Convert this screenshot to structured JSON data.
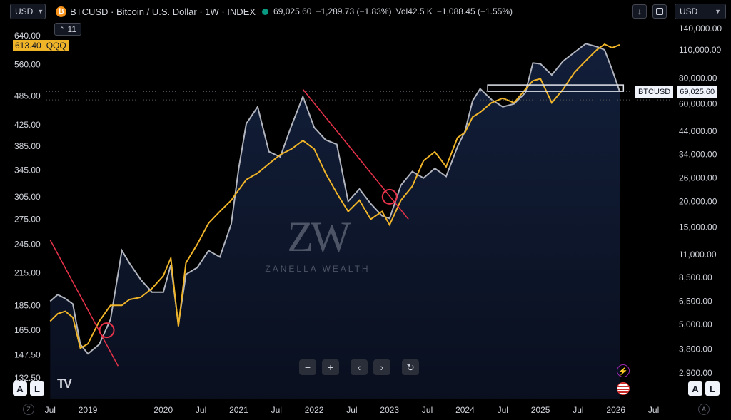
{
  "header": {
    "currency_left": "USD",
    "symbol_title": "BTCUSD · Bitcoin / U.S. Dollar · 1W · INDEX",
    "price": "69,025.60",
    "change": "−1,289.73 (−1.83%)",
    "vol_label": "Vol",
    "vol_value": "42.5 K",
    "vol_change": "−1,088.45 (−1.55%)",
    "currency_right": "USD",
    "compare_count": "11",
    "minus_icon": "minus-icon",
    "plus_icon": "plus-icon"
  },
  "colors": {
    "btc_line": "#b2b5be",
    "qqq_line": "#f0b429",
    "trend_line": "#e8334a",
    "area_fill": "#0e1a33",
    "badge_qqq": "#f0b429"
  },
  "chart_data": {
    "type": "line",
    "title": "BTCUSD · Bitcoin / U.S. Dollar · 1W · INDEX",
    "xlabel": "",
    "ylabel": "",
    "x_ticks": [
      "Jul",
      "2019",
      "2020",
      "Jul",
      "2021",
      "Jul",
      "2022",
      "Jul",
      "2023",
      "Jul",
      "2024",
      "Jul",
      "2025",
      "Jul",
      "2026",
      "Jul"
    ],
    "left_axis": {
      "label": "QQQ",
      "scale": "log",
      "ticks": [
        "640.00",
        "560.00",
        "485.00",
        "425.00",
        "385.00",
        "345.00",
        "305.00",
        "275.00",
        "245.00",
        "215.00",
        "185.00",
        "165.00",
        "147.50",
        "132.50"
      ],
      "current_value": "613.40",
      "current_label": "QQQ"
    },
    "right_axis": {
      "label": "BTCUSD",
      "scale": "log",
      "ticks": [
        "140,000.00",
        "110,000.00",
        "80,000.00",
        "60,000.00",
        "44,000.00",
        "34,000.00",
        "26,000.00",
        "20,000.00",
        "15,000.00",
        "11,000.00",
        "8,500.00",
        "6,500.00",
        "5,000.00",
        "3,800.00",
        "2,900.00"
      ],
      "current_value": "69,025.60",
      "current_label": "BTCUSD"
    },
    "series": [
      {
        "name": "BTCUSD",
        "axis": "right",
        "x": [
          2018.5,
          2018.6,
          2018.7,
          2018.8,
          2018.9,
          2019.0,
          2019.15,
          2019.3,
          2019.45,
          2019.55,
          2019.7,
          2019.85,
          2020.0,
          2020.1,
          2020.2,
          2020.3,
          2020.45,
          2020.6,
          2020.75,
          2020.9,
          2021.0,
          2021.1,
          2021.25,
          2021.4,
          2021.55,
          2021.7,
          2021.85,
          2022.0,
          2022.15,
          2022.3,
          2022.45,
          2022.6,
          2022.75,
          2022.9,
          2023.0,
          2023.15,
          2023.3,
          2023.45,
          2023.6,
          2023.75,
          2023.9,
          2024.0,
          2024.1,
          2024.2,
          2024.35,
          2024.5,
          2024.65,
          2024.8,
          2024.9,
          2025.0,
          2025.15,
          2025.3,
          2025.45,
          2025.6,
          2025.75,
          2025.85,
          2025.95,
          2026.05
        ],
        "values": [
          6500,
          7000,
          6700,
          6300,
          4000,
          3600,
          4000,
          5300,
          11500,
          10000,
          8300,
          7200,
          7200,
          9800,
          5000,
          8800,
          9500,
          11500,
          10700,
          15500,
          29000,
          48000,
          58000,
          35000,
          33000,
          47000,
          65000,
          46000,
          40000,
          38000,
          20000,
          23000,
          19500,
          17000,
          16500,
          24000,
          28000,
          26000,
          29000,
          26500,
          37000,
          44000,
          62000,
          71000,
          63000,
          58000,
          60000,
          68000,
          95000,
          94000,
          83000,
          97000,
          107000,
          118000,
          114000,
          110000,
          88000,
          69025.6
        ]
      },
      {
        "name": "QQQ",
        "axis": "left",
        "x": [
          2018.5,
          2018.6,
          2018.7,
          2018.8,
          2018.9,
          2019.0,
          2019.15,
          2019.3,
          2019.45,
          2019.55,
          2019.7,
          2019.85,
          2020.0,
          2020.1,
          2020.2,
          2020.3,
          2020.45,
          2020.6,
          2020.75,
          2020.9,
          2021.0,
          2021.1,
          2021.25,
          2021.4,
          2021.55,
          2021.7,
          2021.85,
          2022.0,
          2022.15,
          2022.3,
          2022.45,
          2022.6,
          2022.75,
          2022.9,
          2023.0,
          2023.15,
          2023.3,
          2023.45,
          2023.6,
          2023.75,
          2023.9,
          2024.0,
          2024.1,
          2024.2,
          2024.35,
          2024.5,
          2024.65,
          2024.8,
          2024.9,
          2025.0,
          2025.15,
          2025.3,
          2025.45,
          2025.6,
          2025.75,
          2025.85,
          2025.95,
          2026.05
        ],
        "values": [
          172,
          178,
          180,
          175,
          152,
          155,
          172,
          185,
          185,
          190,
          192,
          200,
          212,
          230,
          168,
          225,
          245,
          270,
          285,
          300,
          315,
          330,
          340,
          355,
          370,
          380,
          395,
          380,
          340,
          310,
          285,
          300,
          275,
          285,
          268,
          300,
          320,
          360,
          375,
          350,
          400,
          410,
          440,
          450,
          470,
          480,
          470,
          500,
          520,
          525,
          470,
          500,
          540,
          570,
          600,
          615,
          605,
          613.4
        ]
      }
    ],
    "trend_lines": [
      {
        "from": {
          "x": 2018.5,
          "qqq": 250
        },
        "to": {
          "x": 2019.4,
          "qqq": 140
        }
      },
      {
        "from": {
          "x": 2021.85,
          "qqq": 500
        },
        "to": {
          "x": 2023.25,
          "qqq": 275
        }
      }
    ],
    "grid": false,
    "legend": "none"
  },
  "watermark": {
    "logo_text": "ZW",
    "brand": "ZANELLA WEALTH"
  },
  "footer": {
    "auto_label": "A",
    "log_label": "L",
    "left_circle": "Z",
    "right_circle": "A",
    "brand_logo": "TV"
  }
}
